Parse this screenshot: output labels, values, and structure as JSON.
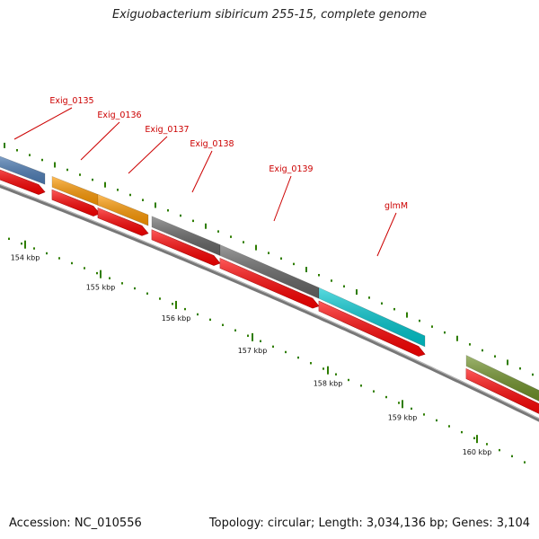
{
  "header": {
    "title": "Exiguobacterium sibiricum 255-15, complete genome"
  },
  "footer": {
    "accession": "Accession: NC_010556",
    "summary": "Topology: circular; Length: 3,034,136 bp; Genes: 3,104"
  },
  "colors": {
    "gene_label": "#cc0000",
    "cds_red": "#ff0000",
    "backbone": "#888888",
    "tick_green": "#2e7d00",
    "tick_label": "#111111"
  },
  "genes": [
    {
      "name": "Exig_0135",
      "color": "#4f7fb8"
    },
    {
      "name": "Exig_0136",
      "color": "#ff9900"
    },
    {
      "name": "Exig_0137",
      "color": "#ff9900"
    },
    {
      "name": "Exig_0138",
      "color": "#666666"
    },
    {
      "name": "Exig_0139",
      "color": "#666666"
    },
    {
      "name": "glmM",
      "color": "#00c8d0"
    },
    {
      "name": "",
      "color": "#6b8e23"
    }
  ],
  "ruler": {
    "labels": [
      "154 kbp",
      "155 kbp",
      "156 kbp",
      "157 kbp",
      "158 kbp",
      "159 kbp",
      "160 kbp"
    ]
  }
}
